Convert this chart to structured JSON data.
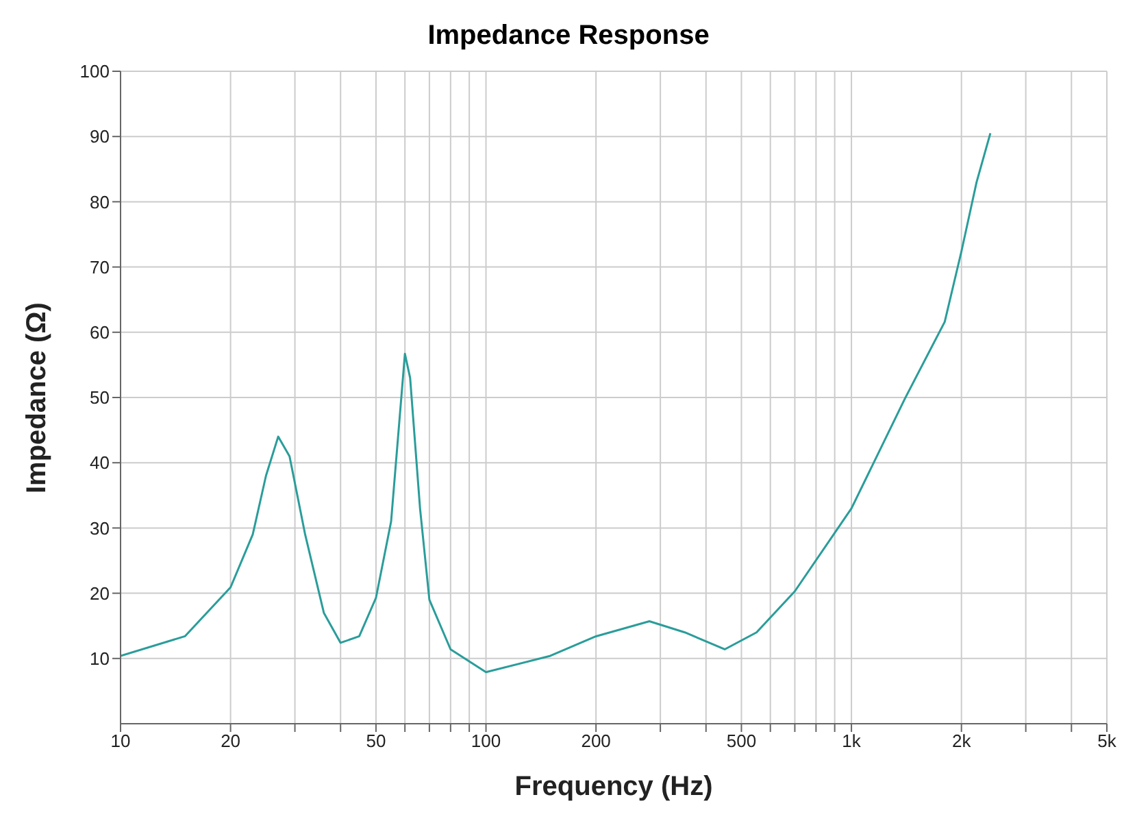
{
  "chart_data": {
    "type": "line",
    "title": "Impedance Response",
    "xlabel": "Frequency (Hz)",
    "ylabel": "Impedance (Ω)",
    "log": "x",
    "grid": true,
    "legend": false,
    "marker": "none",
    "line_style": "solid",
    "xlim": [
      10,
      5000
    ],
    "ylim": [
      0,
      100
    ],
    "xticks": [
      10,
      20,
      {
        "value": 30,
        "label": null
      },
      {
        "value": 40,
        "label": null
      },
      50,
      {
        "value": 60,
        "label": null
      },
      {
        "value": 70,
        "label": null
      },
      {
        "value": 80,
        "label": null
      },
      {
        "value": 90,
        "label": null
      },
      100,
      200,
      {
        "value": 300,
        "label": null
      },
      {
        "value": 400,
        "label": null
      },
      500,
      {
        "value": 600,
        "label": null
      },
      {
        "value": 700,
        "label": null
      },
      {
        "value": 800,
        "label": null
      },
      {
        "value": 900,
        "label": null
      },
      {
        "value": 1000,
        "label": "1k"
      },
      {
        "value": 2000,
        "label": "2k"
      },
      {
        "value": 3000,
        "label": null
      },
      {
        "value": 4000,
        "label": null
      },
      {
        "value": 5000,
        "label": "5k"
      }
    ],
    "yticks": [
      10,
      20,
      30,
      40,
      50,
      60,
      70,
      80,
      90,
      100
    ],
    "series": [
      {
        "color": "#2a9d9a",
        "x": [
          10,
          15,
          20,
          23,
          25,
          27,
          29,
          32,
          36,
          40,
          45,
          50,
          55,
          60,
          62,
          66,
          70,
          80,
          100,
          150,
          200,
          280,
          350,
          450,
          550,
          700,
          1000,
          1400,
          1800,
          2000,
          2200,
          2400
        ],
        "values": [
          10.4,
          13.4,
          20.9,
          29,
          38,
          44,
          41,
          29,
          17,
          12.4,
          13.4,
          19.3,
          31,
          56.7,
          53,
          33,
          19,
          11.4,
          7.9,
          10.4,
          13.4,
          15.7,
          14,
          11.4,
          14,
          20.3,
          33,
          49.8,
          61.6,
          72.4,
          83,
          90.5
        ]
      }
    ]
  }
}
